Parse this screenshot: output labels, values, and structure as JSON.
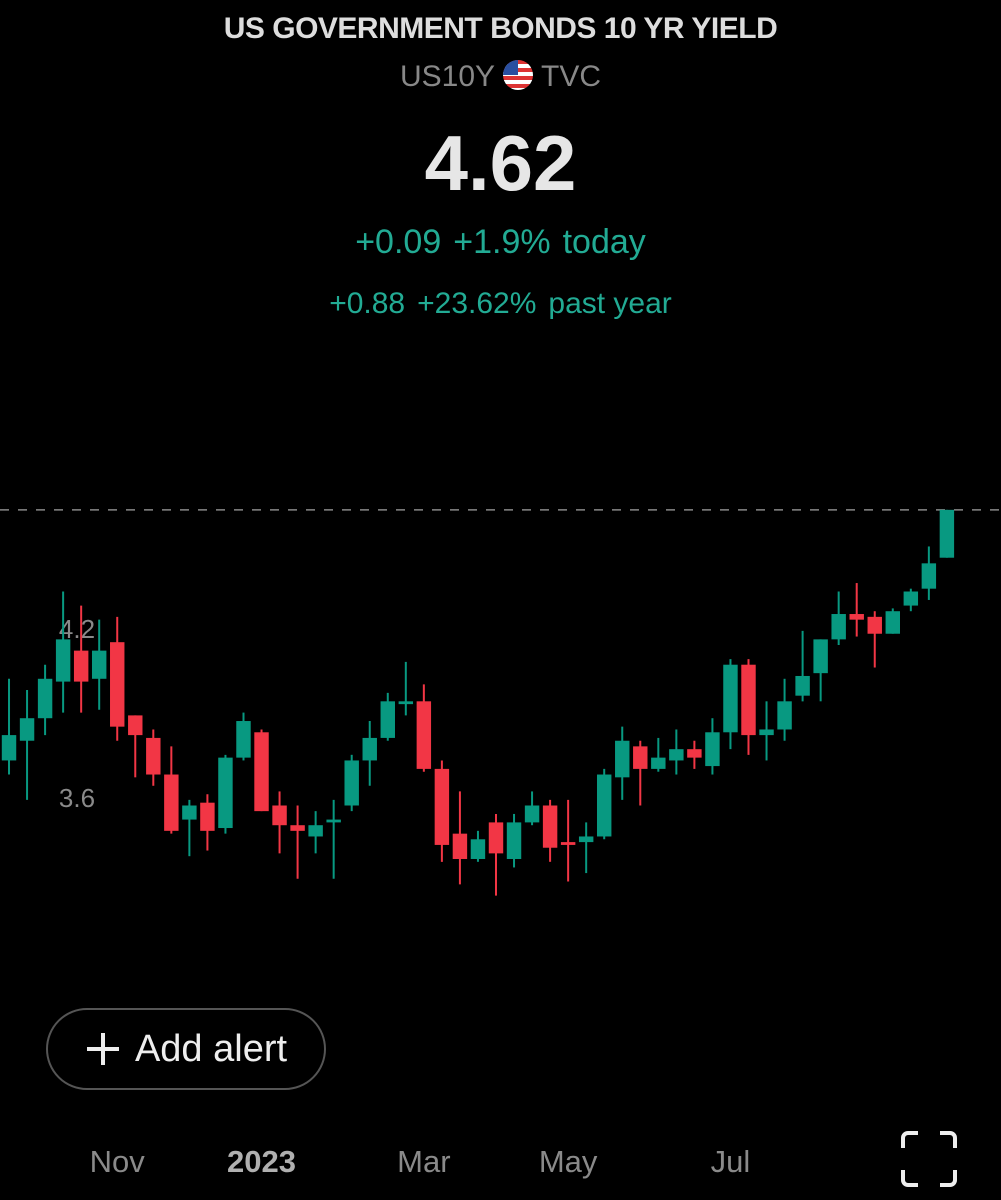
{
  "header": {
    "title": "US GOVERNMENT BONDS 10 YR YIELD",
    "symbol": "US10Y",
    "exchange": "TVC",
    "price": "4.62",
    "day_change": "+0.09",
    "day_change_pct": "+1.9%",
    "day_label": "today",
    "year_change": "+0.88",
    "year_change_pct": "+23.62%",
    "year_label": "past year"
  },
  "button": {
    "label": "Add alert"
  },
  "chart_data": {
    "type": "candlestick",
    "up_color": "#089981",
    "down_color": "#f23645",
    "xlim": [
      -0.5,
      55
    ],
    "ylim": [
      3.0,
      4.9
    ],
    "xticks": [
      {
        "value": 6,
        "label": "Nov"
      },
      {
        "value": 14,
        "label": "2023"
      },
      {
        "value": 23,
        "label": "Mar"
      },
      {
        "value": 31,
        "label": "May"
      },
      {
        "value": 40,
        "label": "Jul"
      }
    ],
    "yticks": [
      3.6,
      4.2
    ],
    "open": [
      3.73,
      3.8,
      3.88,
      4.01,
      4.12,
      4.02,
      4.15,
      3.89,
      3.81,
      3.68,
      3.52,
      3.58,
      3.49,
      3.74,
      3.83,
      3.57,
      3.5,
      3.46,
      3.51,
      3.57,
      3.73,
      3.81,
      3.93,
      3.94,
      3.7,
      3.47,
      3.38,
      3.51,
      3.38,
      3.51,
      3.57,
      3.44,
      3.44,
      3.46,
      3.67,
      3.78,
      3.7,
      3.73,
      3.77,
      3.71,
      3.83,
      4.07,
      3.82,
      3.84,
      3.96,
      4.04,
      4.16,
      4.25,
      4.24,
      4.18,
      4.28,
      4.34,
      4.45
    ],
    "high": [
      4.02,
      3.98,
      4.07,
      4.33,
      4.28,
      4.23,
      4.24,
      3.89,
      3.84,
      3.78,
      3.59,
      3.61,
      3.75,
      3.9,
      3.84,
      3.62,
      3.57,
      3.55,
      3.59,
      3.75,
      3.87,
      3.97,
      4.08,
      4.0,
      3.73,
      3.62,
      3.48,
      3.54,
      3.54,
      3.62,
      3.59,
      3.59,
      3.51,
      3.7,
      3.85,
      3.8,
      3.81,
      3.84,
      3.8,
      3.88,
      4.09,
      4.09,
      3.94,
      4.02,
      4.19,
      4.16,
      4.33,
      4.36,
      4.26,
      4.27,
      4.34,
      4.49,
      4.62
    ],
    "low": [
      3.68,
      3.59,
      3.82,
      3.9,
      3.9,
      3.91,
      3.8,
      3.67,
      3.64,
      3.47,
      3.39,
      3.41,
      3.47,
      3.73,
      3.55,
      3.4,
      3.31,
      3.4,
      3.31,
      3.55,
      3.64,
      3.8,
      3.89,
      3.69,
      3.37,
      3.29,
      3.37,
      3.25,
      3.35,
      3.5,
      3.37,
      3.3,
      3.33,
      3.45,
      3.59,
      3.57,
      3.69,
      3.68,
      3.7,
      3.68,
      3.77,
      3.75,
      3.73,
      3.8,
      3.94,
      3.94,
      4.14,
      4.17,
      4.06,
      4.18,
      4.26,
      4.3,
      4.45
    ],
    "close": [
      3.82,
      3.88,
      4.02,
      4.16,
      4.01,
      4.12,
      3.85,
      3.82,
      3.68,
      3.48,
      3.57,
      3.48,
      3.74,
      3.87,
      3.55,
      3.5,
      3.48,
      3.5,
      3.52,
      3.73,
      3.81,
      3.94,
      3.94,
      3.7,
      3.43,
      3.38,
      3.45,
      3.4,
      3.51,
      3.57,
      3.42,
      3.43,
      3.46,
      3.68,
      3.8,
      3.7,
      3.74,
      3.77,
      3.74,
      3.83,
      4.07,
      3.82,
      3.84,
      3.94,
      4.03,
      4.16,
      4.25,
      4.23,
      4.18,
      4.26,
      4.33,
      4.43,
      4.62
    ]
  }
}
